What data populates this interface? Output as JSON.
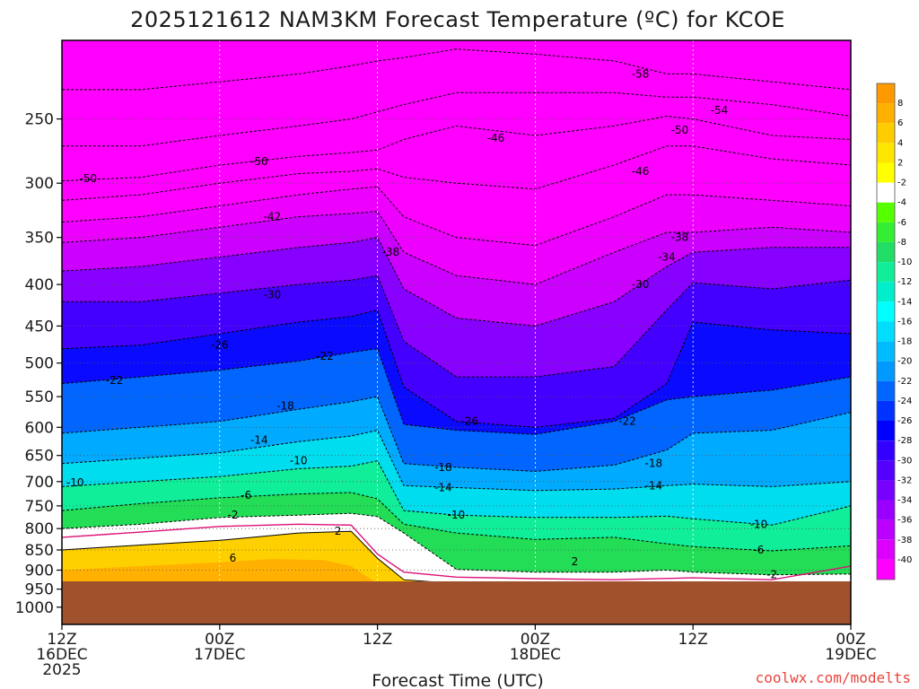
{
  "chart_data": {
    "type": "contour",
    "title": "2025121612 NAM3KM Forecast Temperature (ºC) for KCOE",
    "xlabel": "Forecast Time (UTC)",
    "ylabel": "",
    "credit": "coolwx.com/modelts",
    "x_ticks": [
      {
        "hour": 0,
        "lines": [
          "12Z",
          "16DEC",
          "2025"
        ]
      },
      {
        "hour": 12,
        "lines": [
          "00Z",
          "17DEC"
        ]
      },
      {
        "hour": 24,
        "lines": [
          "12Z"
        ]
      },
      {
        "hour": 36,
        "lines": [
          "00Z",
          "18DEC"
        ]
      },
      {
        "hour": 48,
        "lines": [
          "12Z"
        ]
      },
      {
        "hour": 60,
        "lines": [
          "00Z",
          "19DEC"
        ]
      }
    ],
    "y_ticks": [
      250,
      300,
      350,
      400,
      450,
      500,
      550,
      600,
      650,
      700,
      750,
      800,
      850,
      900,
      950,
      1000
    ],
    "ylim": [
      200,
      1050
    ],
    "xlim": [
      0,
      60
    ],
    "y_scale": "log-pressure (inverted)",
    "grid": true,
    "ground_color": "#a0522d",
    "surface_level_hpa": 935,
    "colorbar": {
      "levels": [
        8,
        6,
        4,
        2,
        -2,
        -4,
        -6,
        -8,
        -10,
        -12,
        -14,
        -16,
        -18,
        -20,
        -22,
        -24,
        -26,
        -28,
        -30,
        -32,
        -34,
        -36,
        -38,
        -40
      ],
      "colors": [
        "#ff9900",
        "#ffb000",
        "#ffcc00",
        "#ffe600",
        "#ffff00",
        "#ffffff",
        "#55ff00",
        "#33ee33",
        "#22dd66",
        "#11ee99",
        "#00eecc",
        "#00ffff",
        "#00ddff",
        "#00bbff",
        "#0099ff",
        "#0066ff",
        "#0033ff",
        "#0000ff",
        "#3300ff",
        "#5500ff",
        "#7700ff",
        "#9900ff",
        "#bb00ff",
        "#dd00ff",
        "#ff00ff"
      ]
    },
    "hours": [
      0,
      6,
      12,
      18,
      22,
      24,
      26,
      30,
      36,
      42,
      46,
      48,
      54,
      60
    ],
    "isotherm_pressures_hpa": {
      "2": [
        850,
        838,
        827,
        810,
        806,
        870,
        925,
        935,
        935,
        935,
        935,
        935,
        935,
        935
      ],
      "-2": [
        800,
        790,
        775,
        770,
        766,
        773,
        810,
        898,
        905,
        905,
        900,
        905,
        912,
        910
      ],
      "-6": [
        760,
        745,
        733,
        725,
        722,
        735,
        790,
        810,
        825,
        820,
        835,
        842,
        852,
        840
      ],
      "-10": [
        710,
        700,
        690,
        675,
        670,
        660,
        760,
        770,
        775,
        775,
        772,
        778,
        792,
        750
      ],
      "-14": [
        665,
        655,
        645,
        625,
        615,
        605,
        708,
        712,
        718,
        715,
        708,
        705,
        710,
        700
      ],
      "-18": [
        610,
        600,
        590,
        570,
        558,
        550,
        665,
        672,
        680,
        668,
        640,
        610,
        605,
        575
      ],
      "-22": [
        530,
        520,
        510,
        497,
        485,
        480,
        595,
        605,
        612,
        590,
        555,
        550,
        540,
        520
      ],
      "-26": [
        480,
        475,
        460,
        445,
        438,
        430,
        535,
        590,
        600,
        585,
        530,
        445,
        455,
        460
      ],
      "-30": [
        420,
        420,
        410,
        400,
        395,
        390,
        470,
        520,
        520,
        505,
        430,
        398,
        405,
        395
      ],
      "-34": [
        385,
        380,
        370,
        360,
        355,
        350,
        405,
        440,
        450,
        420,
        380,
        365,
        360,
        360
      ],
      "-38": [
        355,
        350,
        340,
        330,
        327,
        325,
        365,
        390,
        400,
        365,
        345,
        345,
        340,
        345
      ],
      "-42": [
        335,
        330,
        320,
        310,
        305,
        303,
        330,
        350,
        358,
        330,
        310,
        310,
        315,
        320
      ],
      "-46": [
        315,
        310,
        300,
        292,
        290,
        288,
        295,
        300,
        305,
        285,
        270,
        270,
        280,
        285
      ],
      "-50": [
        298,
        295,
        285,
        278,
        275,
        273,
        265,
        255,
        262,
        255,
        248,
        250,
        262,
        265
      ],
      "-54": [
        270,
        270,
        262,
        255,
        250,
        245,
        240,
        232,
        232,
        232,
        235,
        235,
        240,
        248
      ],
      "-58": [
        230,
        230,
        225,
        220,
        215,
        212,
        210,
        205,
        208,
        212,
        220,
        220,
        225,
        230
      ]
    },
    "contour_labels": [
      {
        "text": "-50",
        "hour": 2,
        "p": 296
      },
      {
        "text": "-50",
        "hour": 15,
        "p": 282
      },
      {
        "text": "-42",
        "hour": 16,
        "p": 330
      },
      {
        "text": "-30",
        "hour": 16,
        "p": 412
      },
      {
        "text": "-26",
        "hour": 12,
        "p": 475
      },
      {
        "text": "-22",
        "hour": 4,
        "p": 525
      },
      {
        "text": "-22",
        "hour": 20,
        "p": 490
      },
      {
        "text": "-18",
        "hour": 17,
        "p": 565
      },
      {
        "text": "-14",
        "hour": 15,
        "p": 622
      },
      {
        "text": "-10",
        "hour": 18,
        "p": 660
      },
      {
        "text": "-10",
        "hour": 1,
        "p": 702
      },
      {
        "text": "-6",
        "hour": 14,
        "p": 728
      },
      {
        "text": "-2",
        "hour": 13,
        "p": 770
      },
      {
        "text": "2",
        "hour": 21,
        "p": 806
      },
      {
        "text": "6",
        "hour": 13,
        "p": 870
      },
      {
        "text": "-38",
        "hour": 25,
        "p": 365
      },
      {
        "text": "-46",
        "hour": 33,
        "p": 264
      },
      {
        "text": "-26",
        "hour": 31,
        "p": 590
      },
      {
        "text": "-18",
        "hour": 29,
        "p": 672
      },
      {
        "text": "-14",
        "hour": 29,
        "p": 712
      },
      {
        "text": "-10",
        "hour": 30,
        "p": 770
      },
      {
        "text": "2",
        "hour": 39,
        "p": 878
      },
      {
        "text": "-22",
        "hour": 43,
        "p": 590
      },
      {
        "text": "-18",
        "hour": 45,
        "p": 665
      },
      {
        "text": "-14",
        "hour": 45,
        "p": 708
      },
      {
        "text": "-30",
        "hour": 44,
        "p": 400
      },
      {
        "text": "-34",
        "hour": 46,
        "p": 370
      },
      {
        "text": "-38",
        "hour": 47,
        "p": 350
      },
      {
        "text": "-46",
        "hour": 44,
        "p": 290
      },
      {
        "text": "-50",
        "hour": 47,
        "p": 258
      },
      {
        "text": "-54",
        "hour": 50,
        "p": 244
      },
      {
        "text": "-58",
        "hour": 44,
        "p": 220
      },
      {
        "text": "-10",
        "hour": 53,
        "p": 790
      },
      {
        "text": "-6",
        "hour": 53,
        "p": 850
      },
      {
        "text": "-2",
        "hour": 54,
        "p": 912
      }
    ]
  }
}
